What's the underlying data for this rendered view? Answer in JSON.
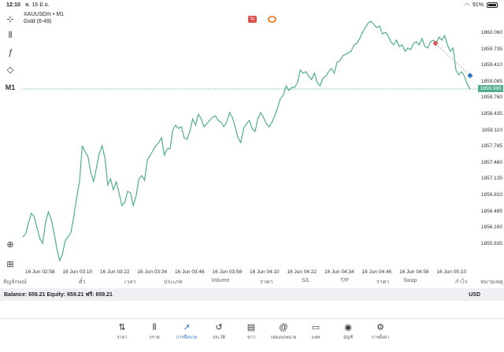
{
  "status": {
    "time": "12:10",
    "date": "พ. 16 มิ.ย.",
    "battery": "91%"
  },
  "chart": {
    "symbol": "XAUUSDm • M1",
    "subtitle": "Gold (6-49)",
    "current_price": "1856.985",
    "line_color": "#4fae8c",
    "price_labels": [
      "1860.060",
      "1859.735",
      "1859.410",
      "1859.085",
      "1858.760",
      "1858.435",
      "1858.110",
      "1857.785",
      "1857.460",
      "1857.135",
      "1856.810",
      "1856.485",
      "1856.160",
      "1855.835"
    ],
    "time_labels": [
      "16 Jun 02:58",
      "16 Jun 03:10",
      "16 Jun 03:22",
      "16 Jun 03:34",
      "16 Jun 03:46",
      "16 Jun 03:58",
      "16 Jun 04:10",
      "16 Jun 04:22",
      "16 Jun 04:34",
      "16 Jun 04:46",
      "16 Jun 04:58",
      "16 Jun 05:10"
    ]
  },
  "table_headers": [
    "สัญลักษณ์",
    "ตั๋ว",
    "เวลา",
    "ประเภท",
    "Volume",
    "ราคา",
    "S/L",
    "T/P",
    "ราคา",
    "Swap",
    "กำไร",
    "หมายเหตุ"
  ],
  "balance": {
    "balance": "Balance: 659.21",
    "equity": "Equity: 659.21",
    "free": "ฟรี: 659.21",
    "currency": "USD"
  },
  "nav": [
    {
      "label": "ราคา",
      "icon": "⇅",
      "name": "quotes"
    },
    {
      "label": "กราฟ",
      "icon": "⫴",
      "name": "chart"
    },
    {
      "label": "การซื้อขาย",
      "icon": "↗",
      "name": "trade"
    },
    {
      "label": "ประวัติ",
      "icon": "↺",
      "name": "history"
    },
    {
      "label": "ข่าว",
      "icon": "▤",
      "name": "news"
    },
    {
      "label": "กล่องจดหมาย",
      "icon": "@",
      "name": "mailbox"
    },
    {
      "label": "แชท",
      "icon": "▭",
      "name": "chat"
    },
    {
      "label": "บัญชี",
      "icon": "◉",
      "name": "account"
    },
    {
      "label": "การตั้งค่า",
      "icon": "⚙",
      "name": "settings"
    }
  ]
}
